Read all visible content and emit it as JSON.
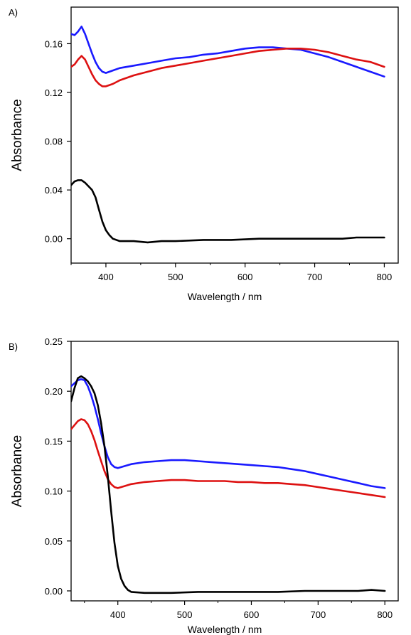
{
  "chart_data": [
    {
      "type": "line",
      "panel_label": "A)",
      "xlabel": "Wavelength / nm",
      "ylabel": "Absorbance",
      "xlim": [
        350,
        820
      ],
      "ylim": [
        -0.02,
        0.19
      ],
      "xticks": [
        400,
        500,
        600,
        700,
        800
      ],
      "yticks": [
        0.0,
        0.04,
        0.08,
        0.12,
        0.16
      ],
      "ytick_labels": [
        "0.00",
        "0.04",
        "0.08",
        "0.12",
        "0.16"
      ],
      "grid": false,
      "series": [
        {
          "color": "#1a1aff",
          "points": [
            [
              350,
              0.168
            ],
            [
              355,
              0.167
            ],
            [
              360,
              0.17
            ],
            [
              365,
              0.174
            ],
            [
              370,
              0.168
            ],
            [
              375,
              0.16
            ],
            [
              380,
              0.152
            ],
            [
              385,
              0.145
            ],
            [
              390,
              0.14
            ],
            [
              395,
              0.137
            ],
            [
              400,
              0.136
            ],
            [
              410,
              0.138
            ],
            [
              420,
              0.14
            ],
            [
              440,
              0.142
            ],
            [
              460,
              0.144
            ],
            [
              480,
              0.146
            ],
            [
              500,
              0.148
            ],
            [
              520,
              0.149
            ],
            [
              540,
              0.151
            ],
            [
              560,
              0.152
            ],
            [
              580,
              0.154
            ],
            [
              600,
              0.156
            ],
            [
              620,
              0.157
            ],
            [
              640,
              0.157
            ],
            [
              660,
              0.156
            ],
            [
              680,
              0.155
            ],
            [
              700,
              0.152
            ],
            [
              720,
              0.149
            ],
            [
              740,
              0.145
            ],
            [
              760,
              0.141
            ],
            [
              780,
              0.137
            ],
            [
              800,
              0.133
            ]
          ]
        },
        {
          "color": "#dd1111",
          "points": [
            [
              350,
              0.141
            ],
            [
              355,
              0.143
            ],
            [
              360,
              0.147
            ],
            [
              365,
              0.15
            ],
            [
              370,
              0.147
            ],
            [
              375,
              0.141
            ],
            [
              380,
              0.135
            ],
            [
              385,
              0.13
            ],
            [
              390,
              0.127
            ],
            [
              395,
              0.125
            ],
            [
              400,
              0.125
            ],
            [
              410,
              0.127
            ],
            [
              420,
              0.13
            ],
            [
              440,
              0.134
            ],
            [
              460,
              0.137
            ],
            [
              480,
              0.14
            ],
            [
              500,
              0.142
            ],
            [
              520,
              0.144
            ],
            [
              540,
              0.146
            ],
            [
              560,
              0.148
            ],
            [
              580,
              0.15
            ],
            [
              600,
              0.152
            ],
            [
              620,
              0.154
            ],
            [
              640,
              0.155
            ],
            [
              660,
              0.156
            ],
            [
              680,
              0.156
            ],
            [
              700,
              0.155
            ],
            [
              720,
              0.153
            ],
            [
              740,
              0.15
            ],
            [
              760,
              0.147
            ],
            [
              780,
              0.145
            ],
            [
              800,
              0.141
            ]
          ]
        },
        {
          "color": "#000000",
          "points": [
            [
              350,
              0.044
            ],
            [
              355,
              0.047
            ],
            [
              360,
              0.048
            ],
            [
              365,
              0.048
            ],
            [
              370,
              0.046
            ],
            [
              375,
              0.043
            ],
            [
              380,
              0.04
            ],
            [
              385,
              0.034
            ],
            [
              390,
              0.024
            ],
            [
              395,
              0.014
            ],
            [
              400,
              0.007
            ],
            [
              405,
              0.003
            ],
            [
              410,
              0.0
            ],
            [
              420,
              -0.002
            ],
            [
              440,
              -0.002
            ],
            [
              460,
              -0.003
            ],
            [
              480,
              -0.002
            ],
            [
              500,
              -0.002
            ],
            [
              540,
              -0.001
            ],
            [
              580,
              -0.001
            ],
            [
              620,
              0.0
            ],
            [
              660,
              0.0
            ],
            [
              700,
              0.0
            ],
            [
              740,
              0.0
            ],
            [
              760,
              0.001
            ],
            [
              780,
              0.001
            ],
            [
              800,
              0.001
            ]
          ]
        }
      ]
    },
    {
      "type": "line",
      "panel_label": "B)",
      "xlabel": "Wavelength / nm",
      "ylabel": "Absorbance",
      "xlim": [
        330,
        820
      ],
      "ylim": [
        -0.01,
        0.25
      ],
      "xticks": [
        400,
        500,
        600,
        700,
        800
      ],
      "yticks": [
        0.0,
        0.05,
        0.1,
        0.15,
        0.2,
        0.25
      ],
      "ytick_labels": [
        "0.00",
        "0.05",
        "0.10",
        "0.15",
        "0.20",
        "0.25"
      ],
      "grid": false,
      "series": [
        {
          "color": "#1a1aff",
          "points": [
            [
              330,
              0.205
            ],
            [
              335,
              0.208
            ],
            [
              340,
              0.211
            ],
            [
              345,
              0.212
            ],
            [
              350,
              0.211
            ],
            [
              355,
              0.205
            ],
            [
              360,
              0.196
            ],
            [
              365,
              0.185
            ],
            [
              370,
              0.172
            ],
            [
              375,
              0.158
            ],
            [
              380,
              0.145
            ],
            [
              385,
              0.134
            ],
            [
              390,
              0.127
            ],
            [
              395,
              0.124
            ],
            [
              400,
              0.123
            ],
            [
              410,
              0.125
            ],
            [
              420,
              0.127
            ],
            [
              440,
              0.129
            ],
            [
              460,
              0.13
            ],
            [
              480,
              0.131
            ],
            [
              500,
              0.131
            ],
            [
              520,
              0.13
            ],
            [
              540,
              0.129
            ],
            [
              560,
              0.128
            ],
            [
              580,
              0.127
            ],
            [
              600,
              0.126
            ],
            [
              620,
              0.125
            ],
            [
              640,
              0.124
            ],
            [
              660,
              0.122
            ],
            [
              680,
              0.12
            ],
            [
              700,
              0.117
            ],
            [
              720,
              0.114
            ],
            [
              740,
              0.111
            ],
            [
              760,
              0.108
            ],
            [
              780,
              0.105
            ],
            [
              800,
              0.103
            ]
          ]
        },
        {
          "color": "#dd1111",
          "points": [
            [
              330,
              0.162
            ],
            [
              335,
              0.166
            ],
            [
              340,
              0.17
            ],
            [
              345,
              0.172
            ],
            [
              350,
              0.171
            ],
            [
              355,
              0.167
            ],
            [
              360,
              0.16
            ],
            [
              365,
              0.151
            ],
            [
              370,
              0.14
            ],
            [
              375,
              0.13
            ],
            [
              380,
              0.12
            ],
            [
              385,
              0.112
            ],
            [
              390,
              0.107
            ],
            [
              395,
              0.104
            ],
            [
              400,
              0.103
            ],
            [
              410,
              0.105
            ],
            [
              420,
              0.107
            ],
            [
              440,
              0.109
            ],
            [
              460,
              0.11
            ],
            [
              480,
              0.111
            ],
            [
              500,
              0.111
            ],
            [
              520,
              0.11
            ],
            [
              540,
              0.11
            ],
            [
              560,
              0.11
            ],
            [
              580,
              0.109
            ],
            [
              600,
              0.109
            ],
            [
              620,
              0.108
            ],
            [
              640,
              0.108
            ],
            [
              660,
              0.107
            ],
            [
              680,
              0.106
            ],
            [
              700,
              0.104
            ],
            [
              720,
              0.102
            ],
            [
              740,
              0.1
            ],
            [
              760,
              0.098
            ],
            [
              780,
              0.096
            ],
            [
              800,
              0.094
            ]
          ]
        },
        {
          "color": "#000000",
          "points": [
            [
              330,
              0.19
            ],
            [
              335,
              0.203
            ],
            [
              340,
              0.213
            ],
            [
              345,
              0.215
            ],
            [
              350,
              0.213
            ],
            [
              355,
              0.21
            ],
            [
              360,
              0.205
            ],
            [
              365,
              0.198
            ],
            [
              370,
              0.186
            ],
            [
              375,
              0.168
            ],
            [
              380,
              0.145
            ],
            [
              385,
              0.115
            ],
            [
              390,
              0.08
            ],
            [
              395,
              0.048
            ],
            [
              400,
              0.025
            ],
            [
              405,
              0.012
            ],
            [
              410,
              0.005
            ],
            [
              415,
              0.001
            ],
            [
              420,
              -0.001
            ],
            [
              440,
              -0.002
            ],
            [
              480,
              -0.002
            ],
            [
              520,
              -0.001
            ],
            [
              560,
              -0.001
            ],
            [
              600,
              -0.001
            ],
            [
              640,
              -0.001
            ],
            [
              680,
              0.0
            ],
            [
              720,
              0.0
            ],
            [
              760,
              0.0
            ],
            [
              780,
              0.001
            ],
            [
              800,
              0.0
            ]
          ]
        }
      ]
    }
  ]
}
